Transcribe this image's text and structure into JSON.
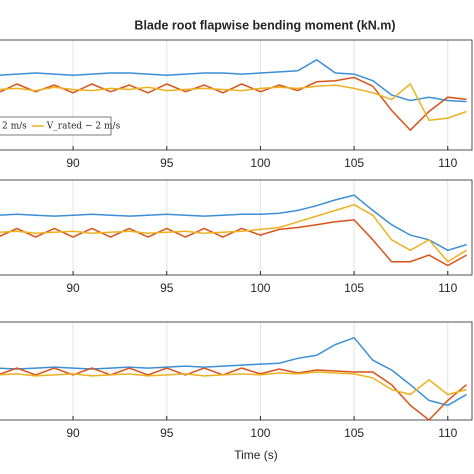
{
  "chart_data": [
    {
      "type": "line",
      "title": "Blade root flapwise bending moment (kN.m)",
      "x": [
        86,
        87,
        88,
        89,
        90,
        91,
        92,
        93,
        94,
        95,
        96,
        97,
        98,
        99,
        100,
        101,
        102,
        103,
        104,
        105,
        106,
        107,
        108,
        109,
        110,
        111
      ],
      "xlim": [
        86.1,
        111.4
      ],
      "xticks": [
        90,
        95,
        100,
        105,
        110
      ],
      "ylim": [
        0,
        10
      ],
      "grid": true,
      "legend": "lower left",
      "series": [
        {
          "color": "#3b8fd6",
          "values": [
            6.8,
            6.9,
            7.0,
            6.9,
            6.8,
            6.9,
            7.0,
            7.0,
            6.9,
            6.8,
            6.9,
            7.0,
            7.0,
            6.9,
            7.0,
            7.1,
            7.2,
            8.2,
            7.0,
            6.9,
            6.3,
            5.0,
            4.5,
            4.8,
            4.5,
            4.4
          ]
        },
        {
          "name": "2 m/s",
          "color": "#d95319",
          "values": [
            5.2,
            6.0,
            5.3,
            5.9,
            5.2,
            6.0,
            5.3,
            5.9,
            5.2,
            6.0,
            5.3,
            5.9,
            5.2,
            6.0,
            5.3,
            5.9,
            5.4,
            6.2,
            6.3,
            6.6,
            5.8,
            3.6,
            1.8,
            3.5,
            4.8,
            4.6
          ]
        },
        {
          "name": "V_rated − 2 m/s",
          "color": "#edb120",
          "values": [
            5.5,
            5.6,
            5.4,
            5.7,
            5.5,
            5.4,
            5.6,
            5.5,
            5.7,
            5.4,
            5.5,
            5.6,
            5.5,
            5.4,
            5.6,
            5.7,
            5.6,
            5.8,
            5.9,
            5.6,
            5.2,
            4.6,
            6.0,
            2.7,
            2.9,
            3.5
          ]
        }
      ]
    },
    {
      "type": "line",
      "x": [
        86,
        87,
        88,
        89,
        90,
        91,
        92,
        93,
        94,
        95,
        96,
        97,
        98,
        99,
        100,
        101,
        102,
        103,
        104,
        105,
        106,
        107,
        108,
        109,
        110,
        111
      ],
      "xlim": [
        86.1,
        111.4
      ],
      "xticks": [
        90,
        95,
        100,
        105,
        110
      ],
      "ylim": [
        0,
        10
      ],
      "grid": true,
      "series": [
        {
          "color": "#3b8fd6",
          "values": [
            6.3,
            6.4,
            6.3,
            6.2,
            6.3,
            6.4,
            6.3,
            6.2,
            6.3,
            6.4,
            6.3,
            6.2,
            6.3,
            6.4,
            6.4,
            6.5,
            6.8,
            7.3,
            7.9,
            8.4,
            6.8,
            5.3,
            4.2,
            3.7,
            2.6,
            3.2
          ]
        },
        {
          "color": "#d95319",
          "values": [
            4.0,
            4.9,
            4.0,
            4.9,
            4.0,
            4.9,
            4.0,
            4.9,
            4.0,
            4.9,
            4.0,
            4.9,
            4.0,
            4.9,
            4.2,
            4.8,
            5.0,
            5.3,
            5.6,
            5.8,
            3.7,
            1.4,
            1.4,
            2.1,
            1.0,
            2.1
          ]
        },
        {
          "color": "#edb120",
          "values": [
            4.5,
            4.6,
            4.4,
            4.5,
            4.6,
            4.4,
            4.5,
            4.6,
            4.4,
            4.5,
            4.6,
            4.4,
            4.5,
            4.6,
            4.8,
            5.0,
            5.6,
            6.2,
            6.8,
            7.4,
            6.3,
            3.7,
            2.6,
            3.7,
            1.4,
            2.6
          ]
        }
      ]
    },
    {
      "type": "line",
      "x_label": "Time (s)",
      "x": [
        86,
        87,
        88,
        89,
        90,
        91,
        92,
        93,
        94,
        95,
        96,
        97,
        98,
        99,
        100,
        101,
        102,
        103,
        104,
        105,
        106,
        107,
        108,
        109,
        110,
        111
      ],
      "xlim": [
        86.1,
        111.4
      ],
      "xticks": [
        90,
        95,
        100,
        105,
        110
      ],
      "ylim": [
        0,
        10
      ],
      "grid": true,
      "series": [
        {
          "color": "#3b8fd6",
          "values": [
            5.3,
            5.2,
            5.3,
            5.4,
            5.3,
            5.2,
            5.3,
            5.4,
            5.3,
            5.4,
            5.5,
            5.4,
            5.5,
            5.6,
            5.7,
            5.8,
            6.3,
            6.6,
            7.7,
            8.4,
            6.1,
            5.1,
            3.6,
            2.0,
            1.5,
            2.6
          ]
        },
        {
          "color": "#d95319",
          "values": [
            4.6,
            5.3,
            4.6,
            5.3,
            4.6,
            5.3,
            4.6,
            5.3,
            4.6,
            5.3,
            4.6,
            5.3,
            4.6,
            5.3,
            4.7,
            5.2,
            4.8,
            5.1,
            5.0,
            4.9,
            4.9,
            3.6,
            1.5,
            0.0,
            2.0,
            3.6
          ]
        },
        {
          "color": "#edb120",
          "values": [
            4.6,
            4.7,
            4.5,
            4.6,
            4.7,
            4.5,
            4.6,
            4.7,
            4.5,
            4.6,
            4.7,
            4.5,
            4.6,
            4.7,
            4.6,
            4.8,
            4.7,
            4.9,
            4.8,
            4.7,
            4.3,
            3.1,
            2.6,
            4.1,
            2.6,
            3.1
          ]
        }
      ]
    }
  ]
}
